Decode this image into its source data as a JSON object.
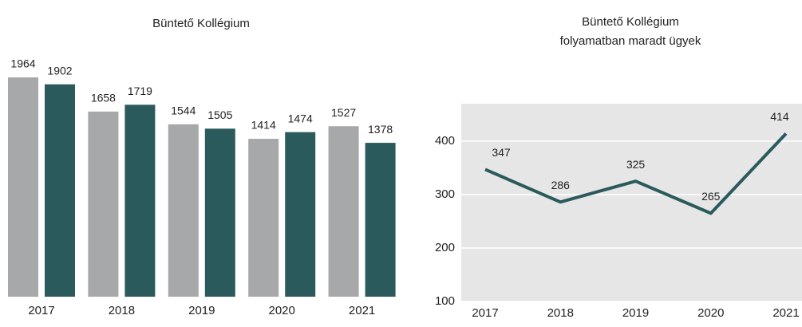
{
  "chart_data": [
    {
      "type": "bar",
      "title": "Büntető Kollégium",
      "categories": [
        "2017",
        "2018",
        "2019",
        "2020",
        "2021"
      ],
      "series": [
        {
          "color": "#a7a8aa",
          "values": [
            1964,
            1658,
            1544,
            1414,
            1527
          ]
        },
        {
          "color": "#2b5a5c",
          "values": [
            1902,
            1719,
            1505,
            1474,
            1378
          ]
        }
      ],
      "ylim": [
        0,
        2000
      ]
    },
    {
      "type": "line",
      "title": "Büntető Kollégium",
      "subtitle": "folyamatban maradt ügyek",
      "categories": [
        "2017",
        "2018",
        "2019",
        "2020",
        "2021"
      ],
      "series": [
        {
          "color": "#2b5a5c",
          "values": [
            347,
            286,
            325,
            265,
            414
          ]
        }
      ],
      "ylim": [
        100,
        470
      ],
      "yticks": [
        100,
        200,
        300,
        400
      ],
      "grid": true,
      "background": "#e6e6e6"
    }
  ]
}
